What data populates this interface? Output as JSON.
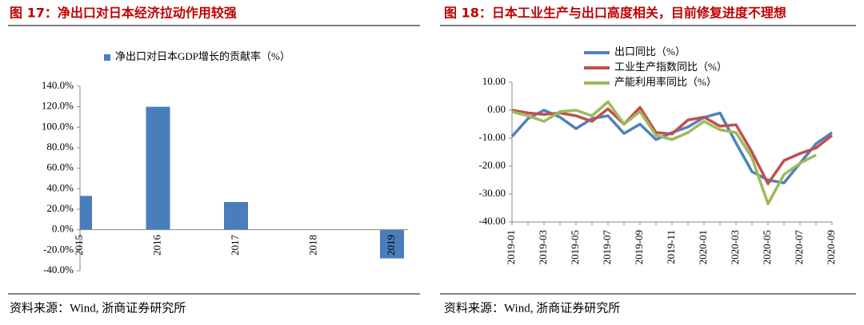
{
  "chart_data": [
    {
      "type": "bar",
      "title": "图 17：净出口对日本经济拉动作用较强",
      "source": "资料来源：Wind, 浙商证券研究所",
      "categories": [
        "2015",
        "2016",
        "2017",
        "2018",
        "2019"
      ],
      "series": [
        {
          "name": "净出口对日本GDP增长的贡献率（%）",
          "color": "#4a7ebb",
          "values": [
            33,
            120,
            27,
            null,
            -28
          ]
        }
      ],
      "ylim": [
        -40,
        140
      ],
      "yticks": [
        {
          "value": -40,
          "label": "-40.0%"
        },
        {
          "value": -20,
          "label": "-20.0%"
        },
        {
          "value": 0,
          "label": "0.0%"
        },
        {
          "value": 20,
          "label": "20.0%"
        },
        {
          "value": 40,
          "label": "40.0%"
        },
        {
          "value": 60,
          "label": "60.0%"
        },
        {
          "value": 80,
          "label": "80.0%"
        },
        {
          "value": 100,
          "label": "100.0%"
        },
        {
          "value": 120,
          "label": "120.0%"
        },
        {
          "value": 140,
          "label": "140.0%"
        }
      ],
      "grid": false
    },
    {
      "type": "line",
      "title": "图 18：日本工业生产与出口高度相关，目前修复进度不理想",
      "source": "资料来源：Wind, 浙商证券研究所",
      "categories": [
        "2019-01",
        null,
        "2019-03",
        null,
        "2019-05",
        null,
        "2019-07",
        null,
        "2019-09",
        null,
        "2019-11",
        null,
        "2020-01",
        null,
        "2020-03",
        null,
        "2020-05",
        null,
        "2020-07",
        null,
        "2020-09"
      ],
      "series": [
        {
          "name": "出口同比（%）",
          "color": "#4f81bd",
          "values": [
            -9.4,
            -3,
            0,
            -2.5,
            -6.6,
            -3,
            -2,
            -8.3,
            -5,
            -10.5,
            -8,
            -6,
            -2.6,
            -1,
            -11.7,
            -22,
            -25,
            -26,
            -19,
            -12,
            -8
          ]
        },
        {
          "name": "工业生产指数同比（%）",
          "color": "#c0504d",
          "values": [
            0,
            -1,
            -1.5,
            -1,
            -2,
            -4,
            0.5,
            -5,
            1,
            -8,
            -8.5,
            -3.5,
            -2.5,
            -5.7,
            -5.2,
            -15,
            -26.3,
            -18,
            -15.5,
            -13.5,
            -9
          ]
        },
        {
          "name": "产能利用率同比（%）",
          "color": "#9bbb59",
          "values": [
            -0.5,
            -2,
            -4,
            -0.5,
            0,
            -2,
            3,
            -5,
            -0.5,
            -9,
            -10.5,
            -8,
            -4,
            -7,
            -8,
            -17,
            -33.5,
            -23,
            -19,
            -16,
            null
          ]
        }
      ],
      "ylim": [
        -40,
        10
      ],
      "yticks": [
        {
          "value": -40,
          "label": "-40.00"
        },
        {
          "value": -30,
          "label": "-30.00"
        },
        {
          "value": -20,
          "label": "-20.00"
        },
        {
          "value": -10,
          "label": "-10.00"
        },
        {
          "value": 0,
          "label": "0.00"
        },
        {
          "value": 10,
          "label": "10.00"
        }
      ],
      "grid": false
    }
  ]
}
